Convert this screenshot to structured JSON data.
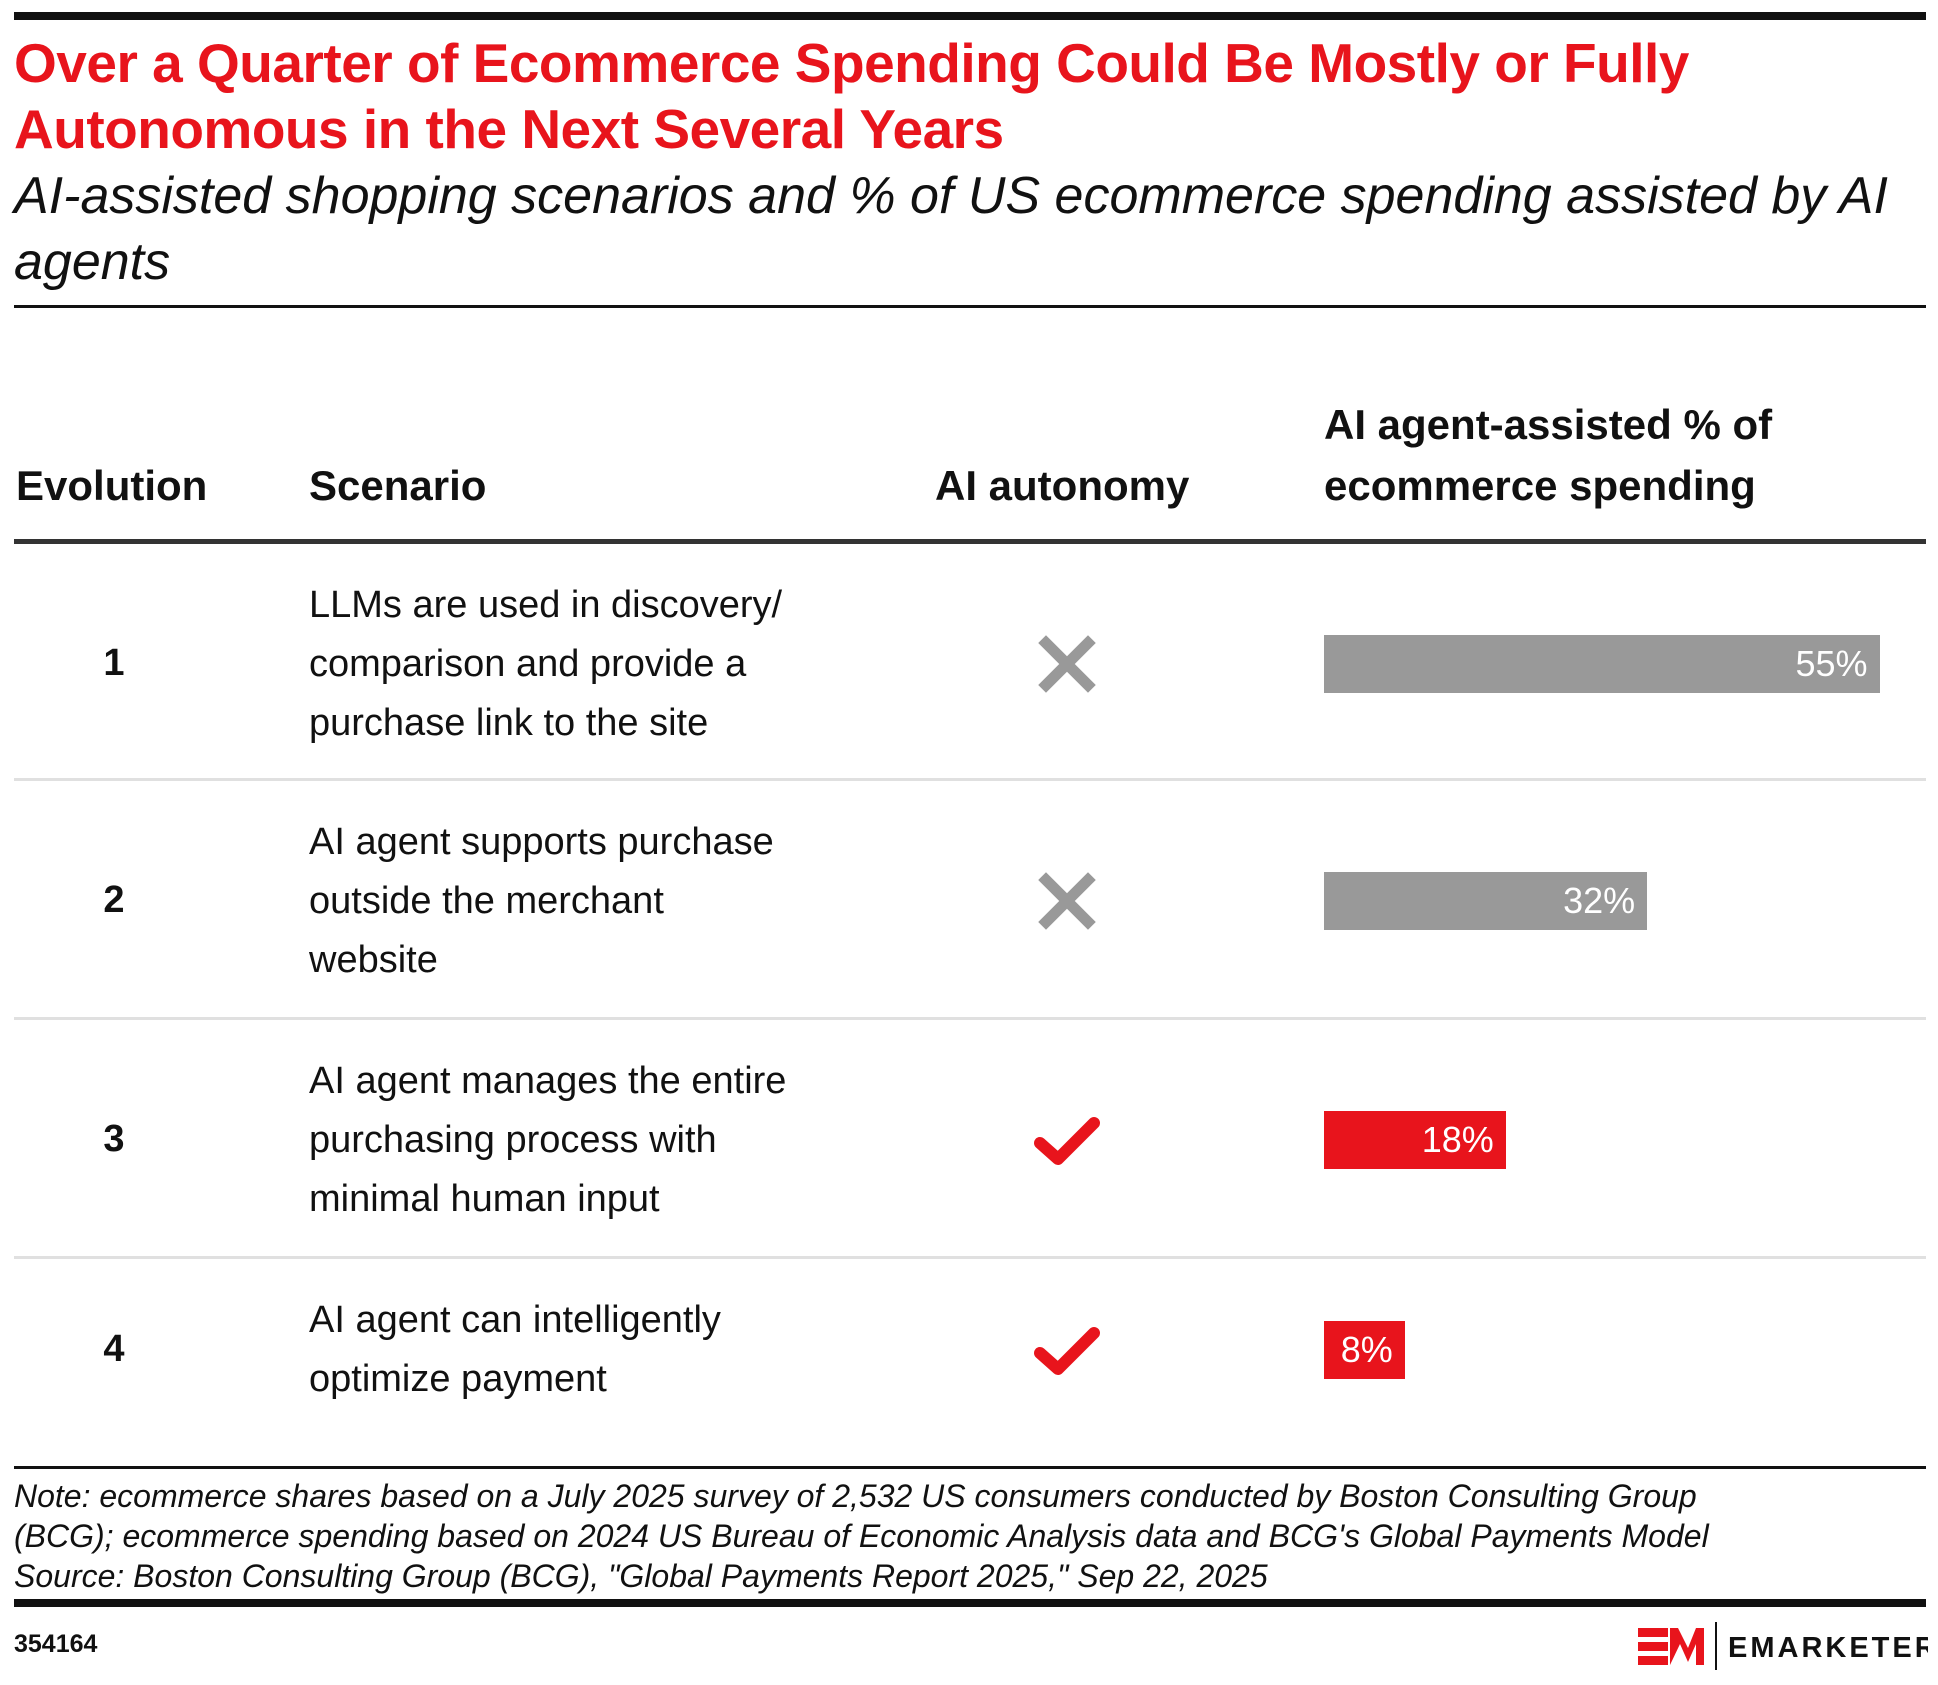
{
  "title": "Over a Quarter of Ecommerce Spending Could Be Mostly or Fully Autonomous in the Next Several Years",
  "subtitle": "AI-assisted shopping scenarios and % of US ecommerce spending assisted by AI agents",
  "chart_data": {
    "type": "table",
    "columns": [
      "Evolution",
      "Scenario",
      "AI autonomy",
      "AI agent-assisted % of ecommerce spending"
    ],
    "rows": [
      {
        "evolution": "1",
        "scenario": [
          "LLMs are used in discovery/",
          "comparison and provide a",
          "purchase link to the site"
        ],
        "autonomy": "x-icon",
        "value": 55,
        "label": "55%",
        "color": "#999999"
      },
      {
        "evolution": "2",
        "scenario": [
          "AI agent supports purchase",
          "outside the merchant",
          "website"
        ],
        "autonomy": "x-icon",
        "value": 32,
        "label": "32%",
        "color": "#999999"
      },
      {
        "evolution": "3",
        "scenario": [
          "AI agent manages the entire",
          "purchasing process with",
          "minimal human input"
        ],
        "autonomy": "check-icon",
        "value": 18,
        "label": "18%",
        "color": "#e8141c"
      },
      {
        "evolution": "4",
        "scenario": [
          "AI agent can intelligently",
          "optimize payment"
        ],
        "autonomy": "check-icon",
        "value": 8,
        "label": "8%",
        "color": "#e8141c"
      }
    ]
  },
  "header": {
    "col1": "Evolution",
    "col2": "Scenario",
    "col3": "AI autonomy",
    "col4_line1": "AI agent-assisted % of",
    "col4_line2": "ecommerce spending"
  },
  "notes": {
    "line1": "Note: ecommerce shares based on a July 2025 survey of 2,532 US consumers conducted by Boston Consulting Group",
    "line2": "(BCG); ecommerce spending based on 2024 US Bureau of Economic Analysis data and BCG's Global Payments Model",
    "line3": "Source: Boston Consulting Group (BCG), \"Global Payments Report 2025,\" Sep 22, 2025"
  },
  "chart_id": "354164",
  "brand": "EMARKETER",
  "colors": {
    "accent": "#e8141c",
    "gray": "#999999"
  }
}
